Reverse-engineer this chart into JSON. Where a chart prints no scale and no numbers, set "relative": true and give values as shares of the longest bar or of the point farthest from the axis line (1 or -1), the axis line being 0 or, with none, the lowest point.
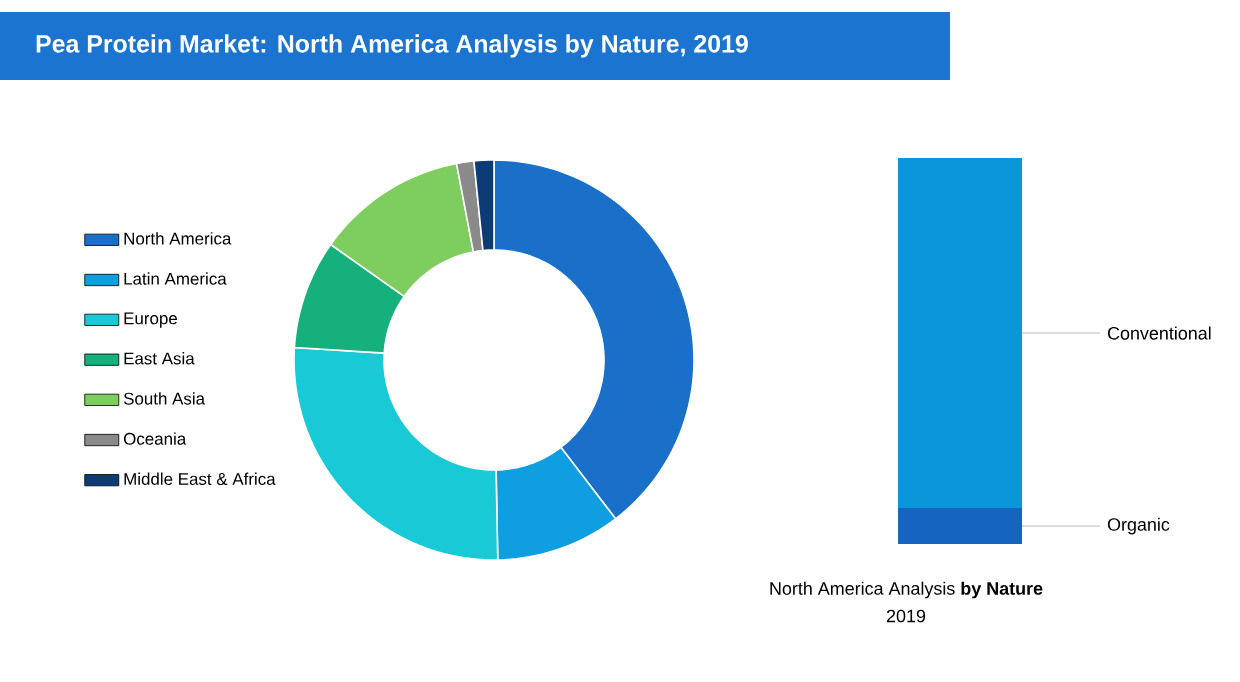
{
  "chart_data": [
    {
      "type": "donut",
      "title": "Pea Protein Market: North America Analysis by Nature, 2019",
      "categories": [
        "North America",
        "Latin America",
        "Europe",
        "East Asia",
        "South Asia",
        "Oceania",
        "Middle East & Africa"
      ],
      "values": [
        39.6,
        10.1,
        26.3,
        8.8,
        12.2,
        1.4,
        1.6
      ],
      "colors": [
        "#1a6fc9",
        "#0f9ee0",
        "#19c9d6",
        "#15b07c",
        "#7dce5e",
        "#8a8a8a",
        "#0d3b73"
      ],
      "legend": "left"
    },
    {
      "type": "bar",
      "stacked": true,
      "relative": true,
      "title": "North America Analysis **by Nature**",
      "subtitle": "2019",
      "categories": [
        null
      ],
      "series": [
        {
          "name": "Organic",
          "color": "#1565c0",
          "values": [
            0.093
          ]
        },
        {
          "name": "Conventional",
          "color": "#0a96d8",
          "values": [
            0.907
          ]
        }
      ]
    }
  ]
}
